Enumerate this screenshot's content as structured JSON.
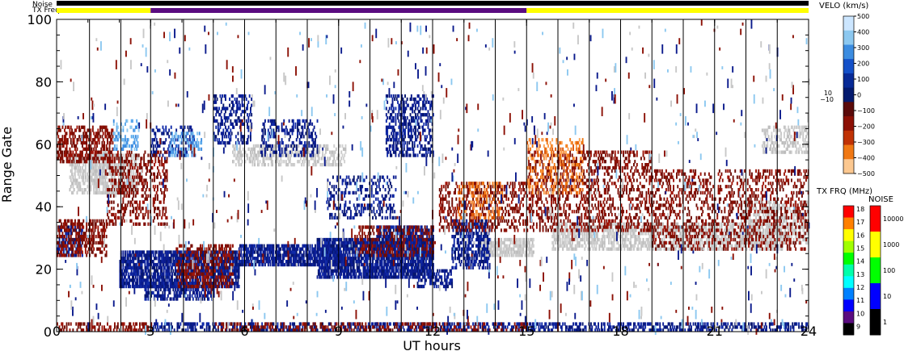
{
  "header": {
    "noise_label": "Noise",
    "txfreq_label": "TX Freq"
  },
  "colors": {
    "noise_bar": "#000000",
    "txfreq_segments": [
      "#ffff00",
      "#5a0c80",
      "#ffff00"
    ],
    "ground_scatter": "#c8c8c8",
    "positive_velocity": "#0a1a8c",
    "negative_velocity": "#8c1005"
  },
  "chart_data": {
    "type": "heatmap",
    "title": "",
    "xlabel": "UT hours",
    "ylabel": "Range Gate",
    "xlim": [
      0,
      24
    ],
    "ylim": [
      0,
      100
    ],
    "x_ticks": [
      "0",
      "3",
      "6",
      "9",
      "12",
      "15",
      "18",
      "21",
      "24"
    ],
    "y_ticks": [
      "0",
      "20",
      "40",
      "60",
      "80",
      "100"
    ],
    "scan_boundaries_ut": [
      1.05,
      2.05,
      3.0,
      4.05,
      5.0,
      6.0,
      7.0,
      8.0,
      9.0,
      10.0,
      11.0,
      12.0,
      13.0,
      14.0,
      15.0,
      16.0,
      17.0,
      18.0,
      19.0,
      20.0,
      21.0,
      22.0,
      23.0
    ],
    "tx_freq_segments": [
      {
        "start": 0,
        "end": 3,
        "freq_mhz": 16
      },
      {
        "start": 3,
        "end": 15,
        "freq_mhz": 10
      },
      {
        "start": 15,
        "end": 24,
        "freq_mhz": 16
      }
    ],
    "velocity_colorbar": {
      "title": "VELO (km/s)",
      "ticks": [
        "500",
        "400",
        "300",
        "200",
        "100",
        "0",
        "−100",
        "−200",
        "−300",
        "−400",
        "−500"
      ],
      "side_labels": [
        "10",
        "−10"
      ],
      "colors": [
        "#cce6ff",
        "#8cc8f0",
        "#3c8ce0",
        "#1450c8",
        "#082a96",
        "#041a6e",
        "#5a0a0a",
        "#8c1005",
        "#c03205",
        "#f07814",
        "#fcc890"
      ]
    },
    "txfreq_colorbar": {
      "title": "TX FRQ (MHz)",
      "ticks": [
        "18",
        "17",
        "16",
        "15",
        "14",
        "13",
        "12",
        "11",
        "10",
        "9"
      ],
      "colors": [
        "#ff0000",
        "#ff8000",
        "#ffff00",
        "#a0ff00",
        "#00ff00",
        "#00ffaa",
        "#00ffff",
        "#0080ff",
        "#0000ff",
        "#5a0c80",
        "#000000"
      ]
    },
    "noise_colorbar": {
      "title": "NOISE",
      "ticks": [
        "10000",
        "1000",
        "100",
        "10",
        "1"
      ],
      "colors": [
        "#ff0000",
        "#ffff00",
        "#00ff00",
        "#0000ff",
        "#000000"
      ]
    },
    "regions": [
      {
        "kind": "ground",
        "t0": 0.4,
        "t1": 2.6,
        "g0": 44,
        "g1": 57,
        "density": 0.55
      },
      {
        "kind": "ground",
        "t0": 1.0,
        "t1": 1.6,
        "g0": 46,
        "g1": 58,
        "density": 0.7
      },
      {
        "kind": "ground",
        "t0": 5.6,
        "t1": 9.2,
        "g0": 53,
        "g1": 60,
        "density": 0.45
      },
      {
        "kind": "ground",
        "t0": 13.5,
        "t1": 15.2,
        "g0": 24,
        "g1": 30,
        "density": 0.7
      },
      {
        "kind": "ground",
        "t0": 15.8,
        "t1": 23.2,
        "g0": 26,
        "g1": 35,
        "density": 0.55
      },
      {
        "kind": "ground",
        "t0": 21.8,
        "t1": 24.0,
        "g0": 28,
        "g1": 42,
        "density": 0.45
      },
      {
        "kind": "ground",
        "t0": 22.5,
        "t1": 24.0,
        "g0": 57,
        "g1": 66,
        "density": 0.45
      },
      {
        "kind": "pos",
        "t0": 0.0,
        "t1": 0.8,
        "g0": 24,
        "g1": 34,
        "density": 0.5
      },
      {
        "kind": "pos",
        "t0": 2.0,
        "t1": 5.8,
        "g0": 14,
        "g1": 26,
        "density": 0.75
      },
      {
        "kind": "pos",
        "t0": 2.8,
        "t1": 5.0,
        "g0": 10,
        "g1": 16,
        "density": 0.6
      },
      {
        "kind": "pos",
        "t0": 5.8,
        "t1": 9.0,
        "g0": 21,
        "g1": 28,
        "density": 0.75
      },
      {
        "kind": "pos",
        "t0": 8.3,
        "t1": 12.0,
        "g0": 17,
        "g1": 30,
        "density": 0.8
      },
      {
        "kind": "pos",
        "t0": 10.2,
        "t1": 12.0,
        "g0": 24,
        "g1": 34,
        "density": 0.7
      },
      {
        "kind": "pos",
        "t0": 10.5,
        "t1": 12.0,
        "g0": 56,
        "g1": 76,
        "density": 0.4
      },
      {
        "kind": "pos",
        "t0": 11.5,
        "t1": 12.6,
        "g0": 14,
        "g1": 20,
        "density": 0.5
      },
      {
        "kind": "pos",
        "t0": 12.6,
        "t1": 13.8,
        "g0": 20,
        "g1": 36,
        "density": 0.55
      },
      {
        "kind": "pos",
        "t0": 5.0,
        "t1": 6.2,
        "g0": 60,
        "g1": 76,
        "density": 0.35
      },
      {
        "kind": "pos",
        "t0": 6.5,
        "t1": 8.3,
        "g0": 56,
        "g1": 68,
        "density": 0.3
      },
      {
        "kind": "pos",
        "t0": 8.6,
        "t1": 10.8,
        "g0": 36,
        "g1": 50,
        "density": 0.25
      },
      {
        "kind": "pos",
        "t0": 3.0,
        "t1": 4.4,
        "g0": 56,
        "g1": 66,
        "density": 0.3
      },
      {
        "kind": "pos",
        "t0": 3.0,
        "t1": 24.0,
        "g0": 0,
        "g1": 3,
        "density": 0.45
      },
      {
        "kind": "neg",
        "t0": 0.0,
        "t1": 1.6,
        "g0": 24,
        "g1": 36,
        "density": 0.45
      },
      {
        "kind": "neg",
        "t0": 0.0,
        "t1": 1.8,
        "g0": 54,
        "g1": 66,
        "density": 0.45
      },
      {
        "kind": "neg",
        "t0": 1.6,
        "t1": 3.5,
        "g0": 34,
        "g1": 58,
        "density": 0.3
      },
      {
        "kind": "neg",
        "t0": 3.8,
        "t1": 5.6,
        "g0": 14,
        "g1": 28,
        "density": 0.4
      },
      {
        "kind": "neg",
        "t0": 9.5,
        "t1": 12.0,
        "g0": 24,
        "g1": 34,
        "density": 0.3
      },
      {
        "kind": "neg",
        "t0": 12.2,
        "t1": 15.0,
        "g0": 32,
        "g1": 48,
        "density": 0.3
      },
      {
        "kind": "neg",
        "t0": 15.0,
        "t1": 19.0,
        "g0": 32,
        "g1": 58,
        "density": 0.3
      },
      {
        "kind": "neg",
        "t0": 19.0,
        "t1": 24.0,
        "g0": 26,
        "g1": 52,
        "density": 0.25
      },
      {
        "kind": "neg",
        "t0": 0.0,
        "t1": 3.0,
        "g0": 0,
        "g1": 3,
        "density": 0.4
      },
      {
        "kind": "neg",
        "t0": 5.0,
        "t1": 15.0,
        "g0": 0,
        "g1": 3,
        "density": 0.3
      },
      {
        "kind": "orange",
        "t0": 12.8,
        "t1": 14.2,
        "g0": 36,
        "g1": 48,
        "density": 0.25
      },
      {
        "kind": "orange",
        "t0": 15.0,
        "t1": 16.8,
        "g0": 44,
        "g1": 62,
        "density": 0.25
      },
      {
        "kind": "light",
        "t0": 1.8,
        "t1": 2.6,
        "g0": 58,
        "g1": 68,
        "density": 0.3
      },
      {
        "kind": "light",
        "t0": 3.6,
        "t1": 4.6,
        "g0": 56,
        "g1": 64,
        "density": 0.3
      }
    ]
  }
}
